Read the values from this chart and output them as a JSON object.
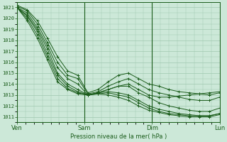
{
  "title": "Pression niveau de la mer( hPa )",
  "bg_color": "#cce8d8",
  "grid_color": "#a0c8b0",
  "line_color": "#1a5c1a",
  "ylim": [
    1010.5,
    1021.5
  ],
  "yticks": [
    1011,
    1012,
    1013,
    1014,
    1015,
    1016,
    1017,
    1018,
    1019,
    1020,
    1021
  ],
  "xtick_labels": [
    "Ven",
    "Sam",
    "Dim",
    "Lun"
  ],
  "xtick_positions": [
    0,
    1,
    2,
    3
  ],
  "xlim": [
    0,
    3
  ],
  "series": [
    [
      1021.2,
      1020.8,
      1019.8,
      1018.2,
      1016.5,
      1015.2,
      1014.8,
      1013.2,
      1013.5,
      1014.2,
      1014.8,
      1015.0,
      1014.5,
      1014.0,
      1013.8,
      1013.5,
      1013.3,
      1013.2,
      1013.1,
      1013.0,
      1013.2
    ],
    [
      1021.1,
      1020.7,
      1019.5,
      1017.8,
      1016.0,
      1014.8,
      1014.5,
      1013.1,
      1013.3,
      1013.8,
      1014.2,
      1014.5,
      1014.0,
      1013.5,
      1013.2,
      1013.0,
      1012.8,
      1012.6,
      1012.5,
      1012.5,
      1012.8
    ],
    [
      1021.0,
      1020.5,
      1019.2,
      1017.5,
      1015.5,
      1014.5,
      1014.0,
      1013.0,
      1013.2,
      1013.5,
      1013.8,
      1013.8,
      1013.2,
      1012.8,
      1012.3,
      1012.0,
      1011.8,
      1011.6,
      1011.5,
      1011.5,
      1011.8
    ],
    [
      1021.0,
      1020.3,
      1019.0,
      1017.2,
      1015.0,
      1014.0,
      1013.5,
      1013.0,
      1013.2,
      1013.3,
      1013.2,
      1013.0,
      1012.5,
      1012.0,
      1011.7,
      1011.5,
      1011.3,
      1011.2,
      1011.1,
      1011.1,
      1011.3
    ],
    [
      1021.0,
      1020.2,
      1018.8,
      1016.8,
      1014.8,
      1013.8,
      1013.3,
      1013.0,
      1013.1,
      1013.0,
      1012.8,
      1012.5,
      1012.0,
      1011.6,
      1011.4,
      1011.2,
      1011.1,
      1011.0,
      1011.0,
      1011.0,
      1011.2
    ],
    [
      1021.0,
      1020.0,
      1018.5,
      1016.5,
      1014.5,
      1013.6,
      1013.2,
      1013.0,
      1013.1,
      1013.2,
      1013.0,
      1012.8,
      1012.3,
      1011.8,
      1011.5,
      1011.3,
      1011.2,
      1011.1,
      1011.1,
      1011.1,
      1011.3
    ],
    [
      1021.0,
      1019.8,
      1018.2,
      1016.2,
      1014.2,
      1013.5,
      1013.1,
      1013.0,
      1013.2,
      1013.5,
      1013.8,
      1014.0,
      1013.5,
      1013.0,
      1012.8,
      1012.8,
      1012.9,
      1013.0,
      1013.1,
      1013.2,
      1013.3
    ]
  ]
}
